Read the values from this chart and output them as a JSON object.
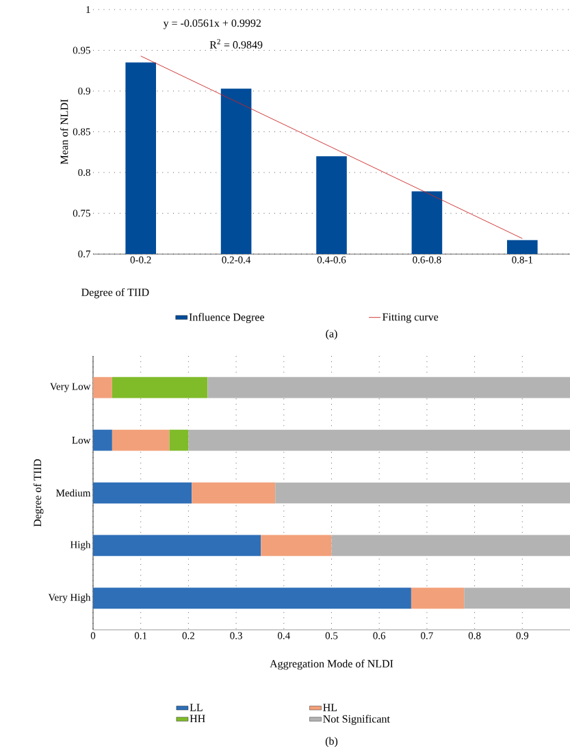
{
  "chart_data": [
    {
      "type": "bar",
      "categories": [
        "0-0.2",
        "0.2-0.4",
        "0.4-0.6",
        "0.6-0.8",
        "0.8-1"
      ],
      "series": [
        {
          "type": "bar",
          "name": "Influence Degree",
          "color": "#004c99",
          "values": [
            0.935,
            0.903,
            0.82,
            0.777,
            0.717
          ]
        },
        {
          "type": "line",
          "name": "Fitting curve",
          "color": "#cc2222",
          "values": [
            0.943,
            0.887,
            0.831,
            0.775,
            0.719
          ]
        }
      ],
      "ylim": [
        0.7,
        1
      ],
      "yticks": [
        0.7,
        0.75,
        0.8,
        0.85,
        0.9,
        0.95,
        1
      ],
      "xlabel": "Degree of TIID",
      "ylabel": "Mean of NLDI",
      "grid": "y",
      "legend": "bottom",
      "annotations": [
        "y = -0.0561x + 0.9992",
        "R$^{2}$ = 0.9849",
        "(a)"
      ]
    },
    {
      "type": "bar",
      "orientation": "horizontal",
      "stacked": true,
      "categories": [
        "Very Low",
        "Low",
        "Medium",
        "High",
        "Very High"
      ],
      "series": [
        {
          "name": "LL",
          "color": "#2e6fb7",
          "values": [
            null,
            0.04,
            0.207,
            0.352,
            0.667
          ]
        },
        {
          "name": "HL",
          "color": "#f2a07a",
          "values": [
            0.04,
            0.12,
            0.175,
            0.148,
            0.111
          ]
        },
        {
          "name": "HH",
          "color": "#80bb2a",
          "values": [
            0.2,
            0.04,
            null,
            null,
            null
          ]
        },
        {
          "name": "Not Significant",
          "color": "#b3b3b3",
          "values": [
            0.76,
            0.8,
            0.618,
            0.5,
            0.222
          ]
        }
      ],
      "xlim": [
        0,
        1
      ],
      "xticks": [
        0,
        0.1,
        0.2,
        0.3,
        0.4,
        0.5,
        0.6,
        0.7,
        0.8,
        0.9
      ],
      "xlabel": "Aggregation Mode of NLDI",
      "ylabel": "Degree of TIID",
      "grid": "x",
      "legend": "bottom",
      "annotations": [
        "(b)"
      ]
    }
  ]
}
